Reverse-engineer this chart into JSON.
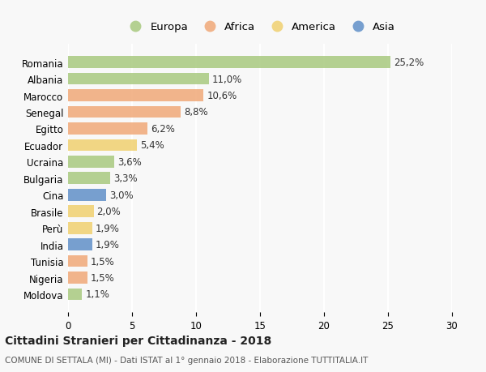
{
  "countries": [
    "Romania",
    "Albania",
    "Marocco",
    "Senegal",
    "Egitto",
    "Ecuador",
    "Ucraina",
    "Bulgaria",
    "Cina",
    "Brasile",
    "Perù",
    "India",
    "Tunisia",
    "Nigeria",
    "Moldova"
  ],
  "values": [
    25.2,
    11.0,
    10.6,
    8.8,
    6.2,
    5.4,
    3.6,
    3.3,
    3.0,
    2.0,
    1.9,
    1.9,
    1.5,
    1.5,
    1.1
  ],
  "labels": [
    "25,2%",
    "11,0%",
    "10,6%",
    "8,8%",
    "6,2%",
    "5,4%",
    "3,6%",
    "3,3%",
    "3,0%",
    "2,0%",
    "1,9%",
    "1,9%",
    "1,5%",
    "1,5%",
    "1,1%"
  ],
  "continents": [
    "Europa",
    "Europa",
    "Africa",
    "Africa",
    "Africa",
    "America",
    "Europa",
    "Europa",
    "Asia",
    "America",
    "America",
    "Asia",
    "Africa",
    "Africa",
    "Europa"
  ],
  "colors": {
    "Europa": "#a8c97f",
    "Africa": "#f0a878",
    "America": "#f0d070",
    "Asia": "#6090c8"
  },
  "legend_order": [
    "Europa",
    "Africa",
    "America",
    "Asia"
  ],
  "bg_color": "#f8f8f8",
  "title": "Cittadini Stranieri per Cittadinanza - 2018",
  "subtitle": "COMUNE DI SETTALA (MI) - Dati ISTAT al 1° gennaio 2018 - Elaborazione TUTTITALIA.IT",
  "xlim": [
    0,
    30
  ],
  "xticks": [
    0,
    5,
    10,
    15,
    20,
    25,
    30
  ],
  "bar_height": 0.72,
  "label_fontsize": 8.5,
  "ytick_fontsize": 8.5,
  "xtick_fontsize": 8.5,
  "legend_fontsize": 9.5,
  "title_fontsize": 10,
  "subtitle_fontsize": 7.5
}
